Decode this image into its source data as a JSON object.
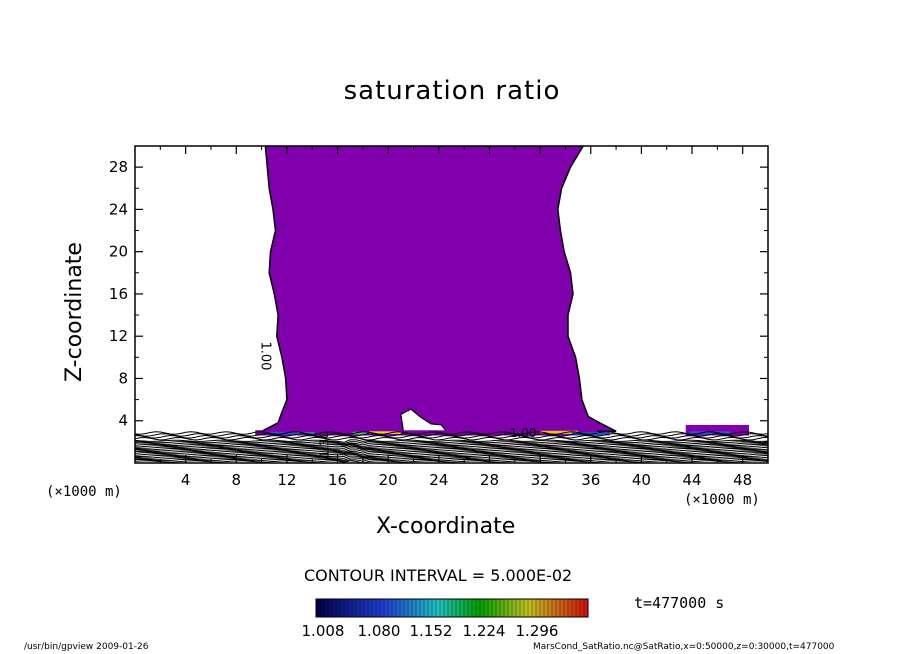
{
  "chart_data": {
    "type": "heatmap",
    "title": "saturation ratio",
    "xlabel": "X-coordinate",
    "ylabel": "Z-coordinate",
    "x_unit_label": "(×1000 m)",
    "z_unit_label": "(×1000 m)",
    "xlim": [
      0,
      50
    ],
    "ylim": [
      0,
      30
    ],
    "x_ticks": [
      4,
      8,
      12,
      16,
      20,
      24,
      28,
      32,
      36,
      40,
      44,
      48
    ],
    "y_ticks": [
      4,
      8,
      12,
      16,
      20,
      24,
      28
    ],
    "contour_interval": "CONTOUR INTERVAL = 5.000E-02",
    "contour_labels": [
      "1.00",
      "1.30",
      "1.00"
    ],
    "time": "t=477000 s",
    "colorbar_ticks": [
      "1.008",
      "1.080",
      "1.152",
      "1.224",
      "1.296"
    ],
    "colorbar_range": [
      1.008,
      1.296
    ],
    "colors": {
      "fill": "#7f00ac",
      "colorbar_low": "#000048",
      "colorbar_mid": "#00a000",
      "colorbar_high": "#d01010"
    },
    "plume_left_edge": [
      [
        10.3,
        30
      ],
      [
        10.6,
        26
      ],
      [
        10.9,
        24
      ],
      [
        11.1,
        22
      ],
      [
        10.7,
        20
      ],
      [
        10.6,
        18
      ],
      [
        11.0,
        16
      ],
      [
        11.3,
        14
      ],
      [
        11.2,
        12
      ],
      [
        11.6,
        10
      ],
      [
        11.9,
        8
      ],
      [
        12.0,
        6
      ],
      [
        11.6,
        4.8
      ],
      [
        11.3,
        3.8
      ]
    ],
    "plume_right_edge": [
      [
        35.4,
        30
      ],
      [
        34.4,
        28
      ],
      [
        33.7,
        26
      ],
      [
        33.4,
        24
      ],
      [
        33.6,
        22
      ],
      [
        33.9,
        20
      ],
      [
        34.4,
        18
      ],
      [
        34.6,
        16
      ],
      [
        34.2,
        14
      ],
      [
        34.2,
        12
      ],
      [
        34.8,
        10
      ],
      [
        35.1,
        8
      ],
      [
        35.3,
        6
      ],
      [
        35.8,
        4.4
      ],
      [
        36.7,
        3.8
      ]
    ],
    "cloud_top_km": 3.0
  },
  "footer": {
    "left": "/usr/bin/gpview   2009-01-26",
    "right": "MarsCond_SatRatio.nc@SatRatio,x=0:50000,z=0:30000,t=477000"
  }
}
